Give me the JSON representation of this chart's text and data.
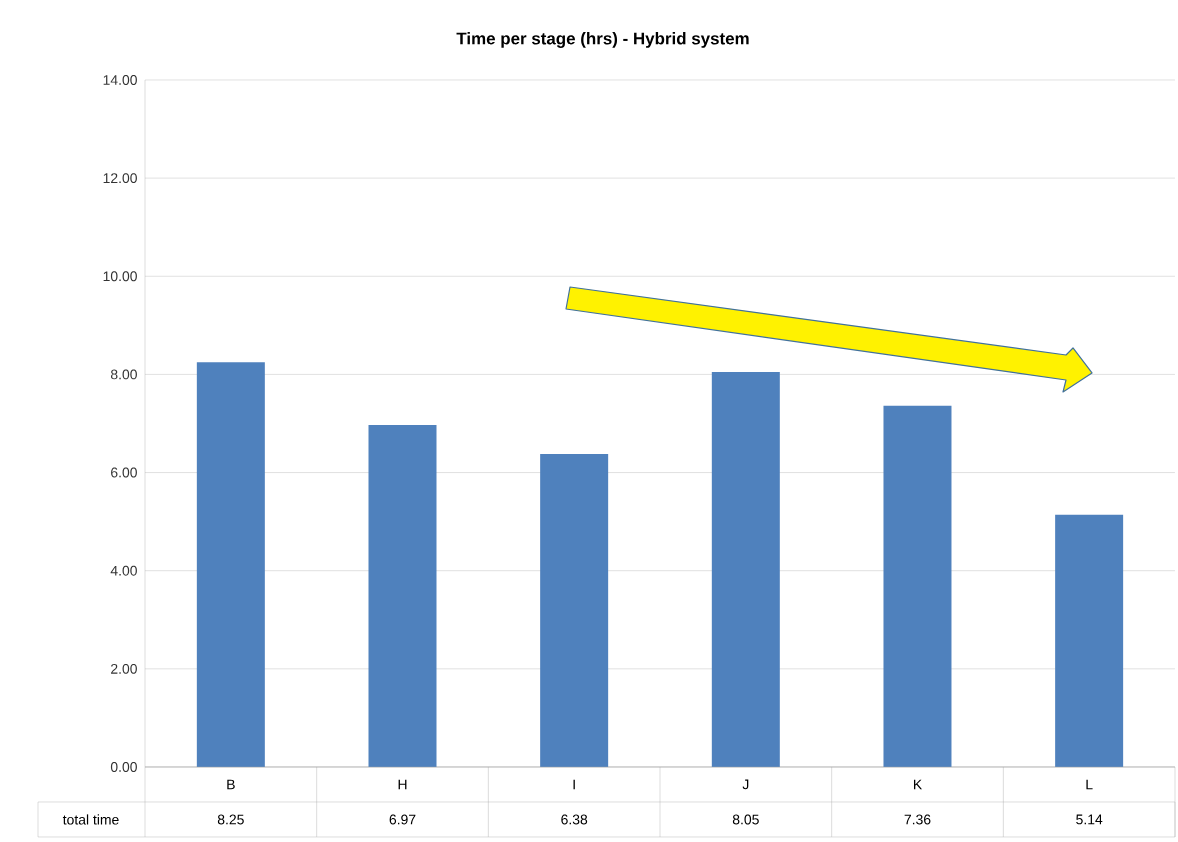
{
  "chart_data": {
    "type": "bar",
    "title": "Time per stage (hrs) - Hybrid system",
    "categories": [
      "B",
      "H",
      "I",
      "J",
      "K",
      "L"
    ],
    "series": [
      {
        "name": "total time",
        "color": "#4f81bd",
        "values": [
          8.25,
          6.97,
          6.38,
          8.05,
          7.36,
          5.14
        ]
      }
    ],
    "ylim": [
      0,
      14
    ],
    "yticks": [
      {
        "value": 0,
        "label": "0.00"
      },
      {
        "value": 2,
        "label": "2.00"
      },
      {
        "value": 4,
        "label": "4.00"
      },
      {
        "value": 6,
        "label": "6.00"
      },
      {
        "value": 8,
        "label": "8.00"
      },
      {
        "value": 10,
        "label": "10.00"
      },
      {
        "value": 12,
        "label": "12.00"
      },
      {
        "value": 14,
        "label": "14.00"
      }
    ],
    "grid": "y",
    "data_labels": true
  }
}
